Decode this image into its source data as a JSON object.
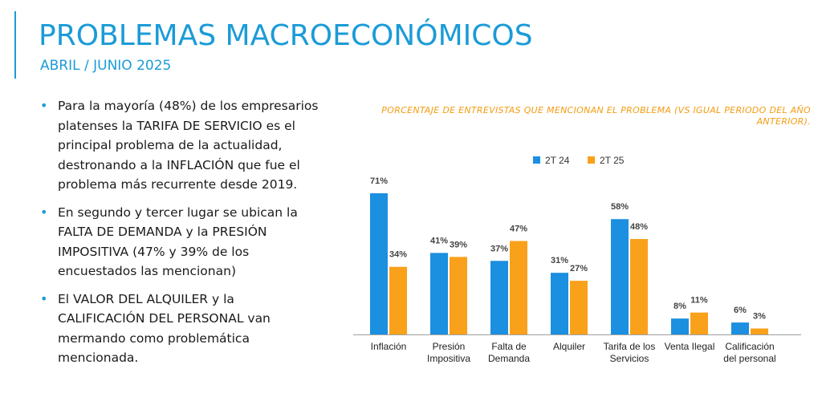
{
  "page": {
    "title": "PROBLEMAS MACROECONÓMICOS",
    "subtitle": "ABRIL / JUNIO 2025",
    "bullets": [
      "Para la mayoría (48%) de los empresarios platenses la TARIFA DE SERVICIO es el principal problema de la actualidad, destronando a la INFLACIÓN que fue el problema más recurrente desde 2019.",
      "En segundo y tercer lugar se ubican la FALTA DE DEMANDA y la PRESIÓN IMPOSITIVA (47% y 39% de los encuestados las mencionan)",
      "El VALOR DEL ALQUILER y la CALIFICACIÓN DEL PERSONAL van mermando como problemática mencionada."
    ]
  },
  "chart_data": {
    "type": "bar",
    "title": "PORCENTAJE DE ENTREVISTAS QUE MENCIONAN EL PROBLEMA (VS IGUAL PERIODO DEL AÑO ANTERIOR).",
    "categories": [
      [
        "Inflación"
      ],
      [
        "Presión",
        "Impositiva"
      ],
      [
        "Falta de",
        "Demanda"
      ],
      [
        "Alquiler"
      ],
      [
        "Tarifa de los",
        "Servicios"
      ],
      [
        "Venta Ilegal"
      ],
      [
        "Calificación",
        "del personal"
      ]
    ],
    "series": [
      {
        "name": "2T 24",
        "color": "#1b8fe0",
        "values": [
          71,
          41,
          37,
          31,
          58,
          8,
          6
        ]
      },
      {
        "name": "2T 25",
        "color": "#f9a11b",
        "values": [
          34,
          39,
          47,
          27,
          48,
          11,
          3
        ]
      }
    ],
    "value_suffix": "%",
    "ylim": [
      0,
      80
    ],
    "grid": false,
    "legend_position": "top-center"
  }
}
